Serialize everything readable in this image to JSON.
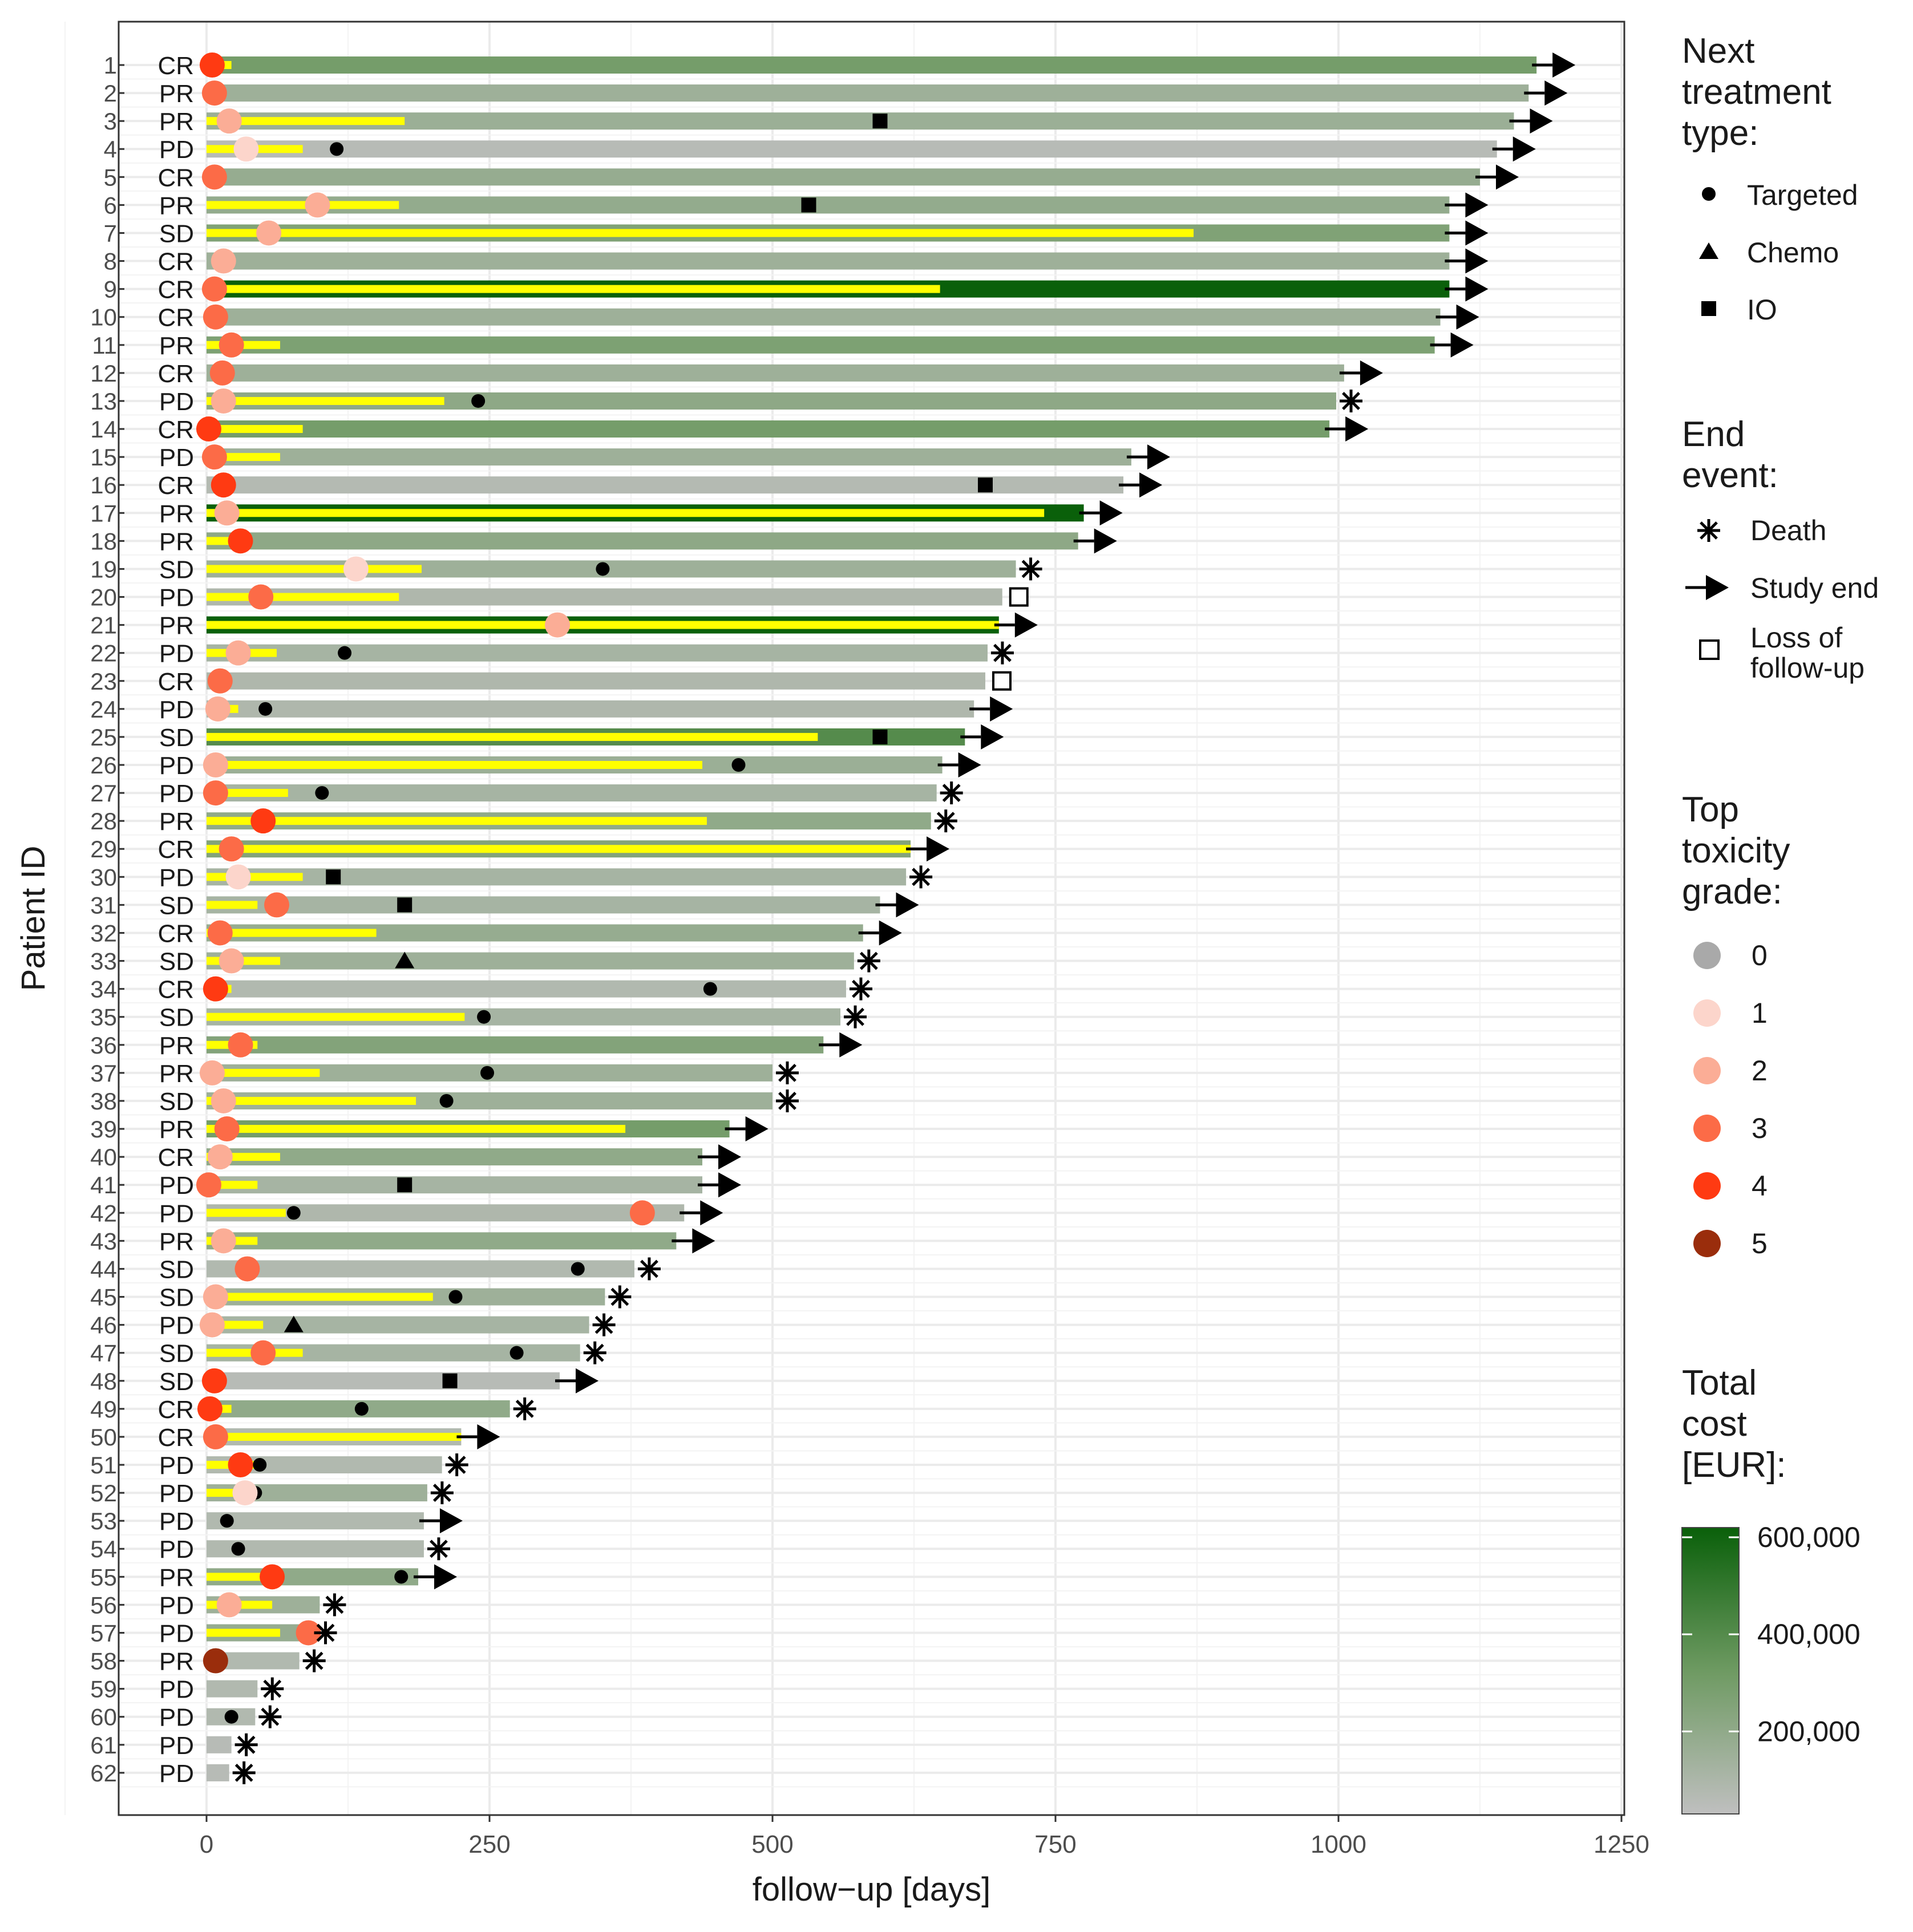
{
  "chart_data": {
    "type": "swimmer",
    "xlabel": "follow−up [days]",
    "ylabel": "Patient ID",
    "xlim": [
      -78,
      1255
    ],
    "xticks": [
      0,
      250,
      500,
      750,
      1000,
      1250
    ],
    "xtick_labels": [
      "0",
      "250",
      "500",
      "750",
      "1000",
      "1250"
    ],
    "grid": true,
    "patients": [
      {
        "id": "1",
        "response": "CR",
        "length": 1175,
        "cost": 300000,
        "yellow": 22,
        "toxicity": 4,
        "tox_day": 5,
        "end_event": "Study end"
      },
      {
        "id": "2",
        "response": "PR",
        "length": 1168,
        "cost": 150000,
        "yellow": 0,
        "toxicity": 3,
        "tox_day": 7,
        "end_event": "Study end"
      },
      {
        "id": "3",
        "response": "PR",
        "length": 1155,
        "cost": 160000,
        "yellow": 175,
        "toxicity": 2,
        "tox_day": 20,
        "next_tx": "IO",
        "next_day": 595,
        "end_event": "Study end"
      },
      {
        "id": "4",
        "response": "PD",
        "length": 1140,
        "cost": 60000,
        "yellow": 85,
        "toxicity": 1,
        "tox_day": 35,
        "next_tx": "Targeted",
        "next_day": 115,
        "end_event": "Study end"
      },
      {
        "id": "5",
        "response": "CR",
        "length": 1125,
        "cost": 180000,
        "yellow": 0,
        "toxicity": 3,
        "tox_day": 7,
        "end_event": "Study end"
      },
      {
        "id": "6",
        "response": "PR",
        "length": 1098,
        "cost": 190000,
        "yellow": 170,
        "toxicity": 2,
        "tox_day": 98,
        "next_tx": "IO",
        "next_day": 532,
        "end_event": "Study end"
      },
      {
        "id": "7",
        "response": "SD",
        "length": 1098,
        "cost": 260000,
        "yellow": 872,
        "toxicity": 2,
        "tox_day": 55,
        "end_event": "Study end"
      },
      {
        "id": "8",
        "response": "CR",
        "length": 1098,
        "cost": 150000,
        "yellow": 0,
        "toxicity": 2,
        "tox_day": 15,
        "end_event": "Study end"
      },
      {
        "id": "9",
        "response": "CR",
        "length": 1098,
        "cost": 620000,
        "yellow": 648,
        "toxicity": 3,
        "tox_day": 7,
        "end_event": "Study end"
      },
      {
        "id": "10",
        "response": "CR",
        "length": 1090,
        "cost": 150000,
        "yellow": 0,
        "toxicity": 3,
        "tox_day": 8,
        "end_event": "Study end"
      },
      {
        "id": "11",
        "response": "PR",
        "length": 1085,
        "cost": 270000,
        "yellow": 65,
        "toxicity": 3,
        "tox_day": 22,
        "end_event": "Study end"
      },
      {
        "id": "12",
        "response": "CR",
        "length": 1005,
        "cost": 150000,
        "yellow": 0,
        "toxicity": 3,
        "tox_day": 14,
        "end_event": "Study end"
      },
      {
        "id": "13",
        "response": "PD",
        "length": 998,
        "cost": 210000,
        "yellow": 210,
        "toxicity": 2,
        "tox_day": 15,
        "next_tx": "Targeted",
        "next_day": 240,
        "end_event": "Death"
      },
      {
        "id": "14",
        "response": "CR",
        "length": 992,
        "cost": 300000,
        "yellow": 85,
        "toxicity": 4,
        "tox_day": 2,
        "end_event": "Study end"
      },
      {
        "id": "15",
        "response": "PD",
        "length": 817,
        "cost": 150000,
        "yellow": 65,
        "toxicity": 3,
        "tox_day": 7,
        "end_event": "Study end"
      },
      {
        "id": "16",
        "response": "CR",
        "length": 810,
        "cost": 70000,
        "yellow": 0,
        "toxicity": 4,
        "tox_day": 15,
        "next_tx": "IO",
        "next_day": 688,
        "end_event": "Study end"
      },
      {
        "id": "17",
        "response": "PR",
        "length": 775,
        "cost": 620000,
        "yellow": 740,
        "toxicity": 2,
        "tox_day": 18,
        "end_event": "Study end"
      },
      {
        "id": "18",
        "response": "PR",
        "length": 770,
        "cost": 210000,
        "yellow": 30,
        "toxicity": 4,
        "tox_day": 30,
        "end_event": "Study end"
      },
      {
        "id": "19",
        "response": "SD",
        "length": 715,
        "cost": 150000,
        "yellow": 190,
        "toxicity": 1,
        "tox_day": 132,
        "next_tx": "Targeted",
        "next_day": 350,
        "end_event": "Death"
      },
      {
        "id": "20",
        "response": "PD",
        "length": 703,
        "cost": 90000,
        "yellow": 170,
        "toxicity": 3,
        "tox_day": 48,
        "end_event": "Loss of follow-up"
      },
      {
        "id": "21",
        "response": "PR",
        "length": 700,
        "cost": 620000,
        "yellow": 700,
        "toxicity": 2,
        "tox_day": 310,
        "end_event": "Study end"
      },
      {
        "id": "22",
        "response": "PD",
        "length": 690,
        "cost": 120000,
        "yellow": 62,
        "toxicity": 2,
        "tox_day": 28,
        "next_tx": "Targeted",
        "next_day": 122,
        "end_event": "Death"
      },
      {
        "id": "23",
        "response": "CR",
        "length": 688,
        "cost": 90000,
        "yellow": 0,
        "toxicity": 3,
        "tox_day": 12,
        "end_event": "Loss of follow-up"
      },
      {
        "id": "24",
        "response": "PD",
        "length": 678,
        "cost": 90000,
        "yellow": 28,
        "toxicity": 2,
        "tox_day": 10,
        "next_tx": "Targeted",
        "next_day": 52,
        "end_event": "Study end"
      },
      {
        "id": "25",
        "response": "SD",
        "length": 670,
        "cost": 400000,
        "yellow": 540,
        "toxicity": 0,
        "next_tx": "IO",
        "next_day": 595,
        "end_event": "Study end"
      },
      {
        "id": "26",
        "response": "PD",
        "length": 650,
        "cost": 160000,
        "yellow": 438,
        "toxicity": 2,
        "tox_day": 8,
        "next_tx": "Targeted",
        "next_day": 470,
        "end_event": "Study end"
      },
      {
        "id": "27",
        "response": "PD",
        "length": 645,
        "cost": 120000,
        "yellow": 72,
        "toxicity": 3,
        "tox_day": 8,
        "next_tx": "Targeted",
        "next_day": 102,
        "end_event": "Death"
      },
      {
        "id": "28",
        "response": "PR",
        "length": 640,
        "cost": 200000,
        "yellow": 442,
        "toxicity": 4,
        "tox_day": 50,
        "end_event": "Death"
      },
      {
        "id": "29",
        "response": "CR",
        "length": 622,
        "cost": 250000,
        "yellow": 622,
        "toxicity": 3,
        "tox_day": 22,
        "end_event": "Study end"
      },
      {
        "id": "30",
        "response": "PD",
        "length": 618,
        "cost": 120000,
        "yellow": 85,
        "toxicity": 1,
        "tox_day": 28,
        "next_tx": "IO",
        "next_day": 112,
        "end_event": "Death"
      },
      {
        "id": "31",
        "response": "SD",
        "length": 595,
        "cost": 120000,
        "yellow": 45,
        "toxicity": 3,
        "tox_day": 62,
        "next_tx": "IO",
        "next_day": 175,
        "end_event": "Study end"
      },
      {
        "id": "32",
        "response": "CR",
        "length": 580,
        "cost": 180000,
        "yellow": 150,
        "toxicity": 3,
        "tox_day": 12,
        "end_event": "Study end"
      },
      {
        "id": "33",
        "response": "SD",
        "length": 572,
        "cost": 150000,
        "yellow": 65,
        "toxicity": 2,
        "tox_day": 22,
        "next_tx": "Chemo",
        "next_day": 175,
        "end_event": "Death"
      },
      {
        "id": "34",
        "response": "CR",
        "length": 565,
        "cost": 80000,
        "yellow": 22,
        "toxicity": 4,
        "tox_day": 8,
        "next_tx": "Targeted",
        "next_day": 445,
        "end_event": "Death"
      },
      {
        "id": "35",
        "response": "SD",
        "length": 560,
        "cost": 120000,
        "yellow": 228,
        "toxicity": 0,
        "next_tx": "Targeted",
        "next_day": 245,
        "end_event": "Death"
      },
      {
        "id": "36",
        "response": "PR",
        "length": 545,
        "cost": 250000,
        "yellow": 45,
        "toxicity": 3,
        "tox_day": 30,
        "end_event": "Study end"
      },
      {
        "id": "37",
        "response": "PR",
        "length": 500,
        "cost": 150000,
        "yellow": 100,
        "toxicity": 2,
        "tox_day": 5,
        "next_tx": "Targeted",
        "next_day": 248,
        "end_event": "Death"
      },
      {
        "id": "38",
        "response": "SD",
        "length": 500,
        "cost": 150000,
        "yellow": 185,
        "toxicity": 2,
        "tox_day": 15,
        "next_tx": "Targeted",
        "next_day": 212,
        "end_event": "Death"
      },
      {
        "id": "39",
        "response": "PR",
        "length": 462,
        "cost": 300000,
        "yellow": 370,
        "toxicity": 3,
        "tox_day": 18,
        "end_event": "Study end"
      },
      {
        "id": "40",
        "response": "CR",
        "length": 438,
        "cost": 200000,
        "yellow": 65,
        "toxicity": 2,
        "tox_day": 12,
        "end_event": "Study end"
      },
      {
        "id": "41",
        "response": "PD",
        "length": 438,
        "cost": 120000,
        "yellow": 45,
        "toxicity": 3,
        "tox_day": 2,
        "next_tx": "IO",
        "next_day": 175,
        "end_event": "Study end"
      },
      {
        "id": "42",
        "response": "PD",
        "length": 422,
        "cost": 90000,
        "yellow": 70,
        "toxicity": 3,
        "tox_day": 385,
        "next_tx": "Targeted",
        "next_day": 77,
        "end_event": "Study end"
      },
      {
        "id": "43",
        "response": "PR",
        "length": 415,
        "cost": 200000,
        "yellow": 45,
        "toxicity": 2,
        "tox_day": 15,
        "end_event": "Study end"
      },
      {
        "id": "44",
        "response": "SD",
        "length": 378,
        "cost": 80000,
        "yellow": 0,
        "toxicity": 3,
        "tox_day": 36,
        "next_tx": "Targeted",
        "next_day": 328,
        "end_event": "Death"
      },
      {
        "id": "45",
        "response": "SD",
        "length": 352,
        "cost": 150000,
        "yellow": 200,
        "toxicity": 2,
        "tox_day": 8,
        "next_tx": "Targeted",
        "next_day": 220,
        "end_event": "Death"
      },
      {
        "id": "46",
        "response": "PD",
        "length": 338,
        "cost": 120000,
        "yellow": 50,
        "toxicity": 2,
        "tox_day": 5,
        "next_tx": "Chemo",
        "next_day": 77,
        "end_event": "Death"
      },
      {
        "id": "47",
        "response": "SD",
        "length": 330,
        "cost": 120000,
        "yellow": 85,
        "toxicity": 3,
        "tox_day": 50,
        "next_tx": "Targeted",
        "next_day": 274,
        "end_event": "Death"
      },
      {
        "id": "48",
        "response": "SD",
        "length": 312,
        "cost": 60000,
        "yellow": 0,
        "toxicity": 4,
        "tox_day": 7,
        "next_tx": "IO",
        "next_day": 215,
        "end_event": "Study end"
      },
      {
        "id": "49",
        "response": "CR",
        "length": 268,
        "cost": 200000,
        "yellow": 22,
        "toxicity": 4,
        "tox_day": 3,
        "next_tx": "Targeted",
        "next_day": 137,
        "end_event": "Death"
      },
      {
        "id": "50",
        "response": "CR",
        "length": 225,
        "cost": 80000,
        "yellow": 225,
        "toxicity": 3,
        "tox_day": 8,
        "end_event": "Study end"
      },
      {
        "id": "51",
        "response": "PD",
        "length": 208,
        "cost": 80000,
        "yellow": 45,
        "toxicity": 4,
        "tox_day": 30,
        "next_tx": "Targeted",
        "next_day": 47,
        "end_event": "Death"
      },
      {
        "id": "52",
        "response": "PD",
        "length": 195,
        "cost": 150000,
        "yellow": 35,
        "toxicity": 1,
        "tox_day": 34,
        "next_tx": "Targeted",
        "next_day": 43,
        "end_event": "Death"
      },
      {
        "id": "53",
        "response": "PD",
        "length": 192,
        "cost": 80000,
        "yellow": 0,
        "toxicity": 0,
        "next_tx": "Targeted",
        "next_day": 18,
        "end_event": "Study end"
      },
      {
        "id": "54",
        "response": "PD",
        "length": 192,
        "cost": 80000,
        "yellow": 0,
        "toxicity": 0,
        "next_tx": "Targeted",
        "next_day": 28,
        "end_event": "Death"
      },
      {
        "id": "55",
        "response": "PR",
        "length": 187,
        "cost": 200000,
        "yellow": 55,
        "toxicity": 4,
        "tox_day": 58,
        "next_tx": "Targeted",
        "next_day": 172,
        "end_event": "Study end"
      },
      {
        "id": "56",
        "response": "PD",
        "length": 100,
        "cost": 150000,
        "yellow": 58,
        "toxicity": 2,
        "tox_day": 20,
        "end_event": "Death"
      },
      {
        "id": "57",
        "response": "PD",
        "length": 92,
        "cost": 180000,
        "yellow": 65,
        "toxicity": 3,
        "tox_day": 90,
        "end_event": "Death"
      },
      {
        "id": "58",
        "response": "PR",
        "length": 82,
        "cost": 80000,
        "yellow": 0,
        "toxicity": 5,
        "tox_day": 8,
        "end_event": "Death"
      },
      {
        "id": "59",
        "response": "PD",
        "length": 45,
        "cost": 80000,
        "yellow": 0,
        "toxicity": 0,
        "end_event": "Death"
      },
      {
        "id": "60",
        "response": "PD",
        "length": 43,
        "cost": 80000,
        "yellow": 0,
        "toxicity": 0,
        "next_tx": "Targeted",
        "next_day": 22,
        "end_event": "Death"
      },
      {
        "id": "61",
        "response": "PD",
        "length": 22,
        "cost": 60000,
        "yellow": 0,
        "toxicity": 0,
        "end_event": "Death"
      },
      {
        "id": "62",
        "response": "PD",
        "length": 20,
        "cost": 60000,
        "yellow": 0,
        "toxicity": 0,
        "end_event": "Death"
      }
    ],
    "legend": {
      "next_treatment": {
        "title": [
          "Next",
          "treatment",
          "type:"
        ],
        "items": [
          "Targeted",
          "Chemo",
          "IO"
        ]
      },
      "end_event": {
        "title": [
          "End",
          "event:"
        ],
        "items": [
          "Death",
          "Study end",
          "Loss of",
          "follow-up"
        ]
      },
      "toxicity": {
        "title": [
          "Top",
          "toxicity",
          "grade:"
        ],
        "items": [
          "0",
          "1",
          "2",
          "3",
          "4",
          "5"
        ]
      },
      "cost": {
        "title": [
          "Total",
          "cost",
          "[EUR]:"
        ],
        "range": [
          30000,
          620000
        ],
        "ticks": [
          200000,
          400000,
          600000
        ],
        "tick_labels": [
          "200,000",
          "400,000",
          "600,000"
        ]
      }
    },
    "colors": {
      "toxicity": [
        "#a9a9a9",
        "#fcd5cb",
        "#fbad96",
        "#fc6b47",
        "#ff3a12",
        "#9a2d0c"
      ],
      "cost_low": "#bfbfbf",
      "cost_mid": "#6e9a62",
      "cost_high": "#0a600a",
      "yellow": "#ffff00",
      "grid": "#ebebeb"
    }
  }
}
